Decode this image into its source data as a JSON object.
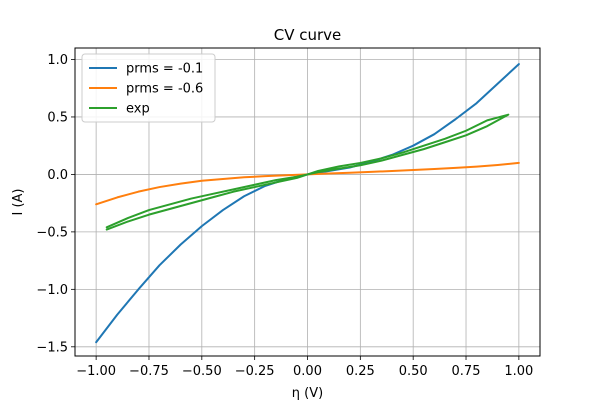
{
  "chart_data": {
    "type": "line",
    "title": "CV curve",
    "xlabel": "η (V)",
    "ylabel": "I (A)",
    "xlim": [
      -1.1,
      1.1
    ],
    "ylim": [
      -1.58,
      1.1
    ],
    "xticks": [
      -1.0,
      -0.75,
      -0.5,
      -0.25,
      0.0,
      0.25,
      0.5,
      0.75,
      1.0
    ],
    "xtick_labels": [
      "−1.00",
      "−0.75",
      "−0.50",
      "−0.25",
      "0.00",
      "0.25",
      "0.50",
      "0.75",
      "1.00"
    ],
    "yticks": [
      -1.5,
      -1.0,
      -0.5,
      0.0,
      0.5,
      1.0
    ],
    "ytick_labels": [
      "−1.5",
      "−1.0",
      "−0.5",
      "0.0",
      "0.5",
      "1.0"
    ],
    "grid": true,
    "legend_position": "top-left",
    "series": [
      {
        "name": "prms = -0.1",
        "color": "#1f77b4",
        "x": [
          -1.0,
          -0.9,
          -0.8,
          -0.7,
          -0.6,
          -0.5,
          -0.4,
          -0.3,
          -0.2,
          -0.1,
          0.0,
          0.1,
          0.2,
          0.3,
          0.4,
          0.5,
          0.6,
          0.7,
          0.8,
          0.9,
          1.0
        ],
        "y": [
          -1.46,
          -1.22,
          -1.0,
          -0.79,
          -0.61,
          -0.45,
          -0.31,
          -0.19,
          -0.1,
          -0.04,
          0.0,
          0.03,
          0.06,
          0.11,
          0.17,
          0.25,
          0.35,
          0.48,
          0.62,
          0.79,
          0.96
        ]
      },
      {
        "name": "prms = -0.6",
        "color": "#ff7f0e",
        "x": [
          -1.0,
          -0.9,
          -0.8,
          -0.7,
          -0.6,
          -0.5,
          -0.4,
          -0.3,
          -0.2,
          -0.1,
          0.0,
          0.1,
          0.2,
          0.3,
          0.4,
          0.5,
          0.6,
          0.7,
          0.8,
          0.9,
          1.0
        ],
        "y": [
          -0.26,
          -0.2,
          -0.15,
          -0.11,
          -0.08,
          -0.055,
          -0.04,
          -0.025,
          -0.015,
          -0.007,
          0.0,
          0.008,
          0.015,
          0.022,
          0.03,
          0.038,
          0.047,
          0.057,
          0.068,
          0.082,
          0.1
        ]
      },
      {
        "name": "exp",
        "color": "#2ca02c",
        "x": [
          -0.95,
          -0.85,
          -0.75,
          -0.65,
          -0.55,
          -0.45,
          -0.35,
          -0.25,
          -0.15,
          -0.05,
          0.0,
          0.05,
          0.15,
          0.25,
          0.35,
          0.45,
          0.55,
          0.65,
          0.75,
          0.85,
          0.95,
          0.85,
          0.75,
          0.65,
          0.55,
          0.45,
          0.35,
          0.25,
          0.15,
          0.05,
          0.0,
          -0.05,
          -0.15,
          -0.25,
          -0.35,
          -0.45,
          -0.55,
          -0.65,
          -0.75,
          -0.85,
          -0.95
        ],
        "y": [
          -0.48,
          -0.41,
          -0.35,
          -0.3,
          -0.25,
          -0.2,
          -0.15,
          -0.11,
          -0.07,
          -0.03,
          0.0,
          0.02,
          0.05,
          0.08,
          0.12,
          0.17,
          0.22,
          0.28,
          0.34,
          0.42,
          0.52,
          0.47,
          0.38,
          0.31,
          0.25,
          0.19,
          0.14,
          0.1,
          0.07,
          0.03,
          0.0,
          -0.02,
          -0.05,
          -0.09,
          -0.13,
          -0.17,
          -0.21,
          -0.26,
          -0.31,
          -0.38,
          -0.46
        ]
      }
    ]
  }
}
